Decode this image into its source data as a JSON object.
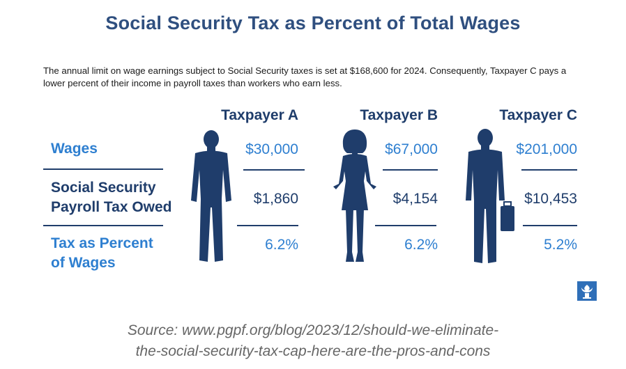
{
  "title": "Social Security Tax as Percent of Total Wages",
  "subtitle": "The annual limit on wage earnings subject to Social Security taxes is set at $168,600 for 2024. Consequently, Taxpayer C pays a lower percent of their income in payroll taxes than workers who earn less.",
  "chart_data": {
    "type": "table",
    "title": "Social Security Tax as Percent of Total Wages",
    "columns": [
      "Taxpayer A",
      "Taxpayer B",
      "Taxpayer C"
    ],
    "rows": [
      {
        "label": "Wages",
        "label_lines": [
          "Wages"
        ],
        "values": [
          "$30,000",
          "$67,000",
          "$201,000"
        ]
      },
      {
        "label": "Social Security Payroll Tax Owed",
        "label_lines": [
          "Social Security",
          "Payroll Tax Owed"
        ],
        "values": [
          "$1,860",
          "$4,154",
          "$10,453"
        ]
      },
      {
        "label": "Tax as Percent of Wages",
        "label_lines": [
          "Tax as Percent",
          "of Wages"
        ],
        "values": [
          "6.2%",
          "6.2%",
          "5.2%"
        ]
      }
    ],
    "numeric": {
      "wages": [
        30000,
        67000,
        201000
      ],
      "tax_owed": [
        1860,
        4154,
        10453
      ],
      "tax_percent": [
        6.2,
        6.2,
        5.2
      ]
    }
  },
  "source": {
    "line1": "Source: www.pgpf.org/blog/2023/12/should-we-eliminate-",
    "line2": "the-social-security-tax-cap-here-are-the-pros-and-cons"
  },
  "colors": {
    "title": "#2f4f7f",
    "accent": "#2e7fd0",
    "dark": "#1f3d6b",
    "source": "#666666"
  },
  "icons": [
    "person-silhouette-icon",
    "woman-silhouette-icon",
    "person-briefcase-silhouette-icon",
    "torch-logo-icon"
  ]
}
